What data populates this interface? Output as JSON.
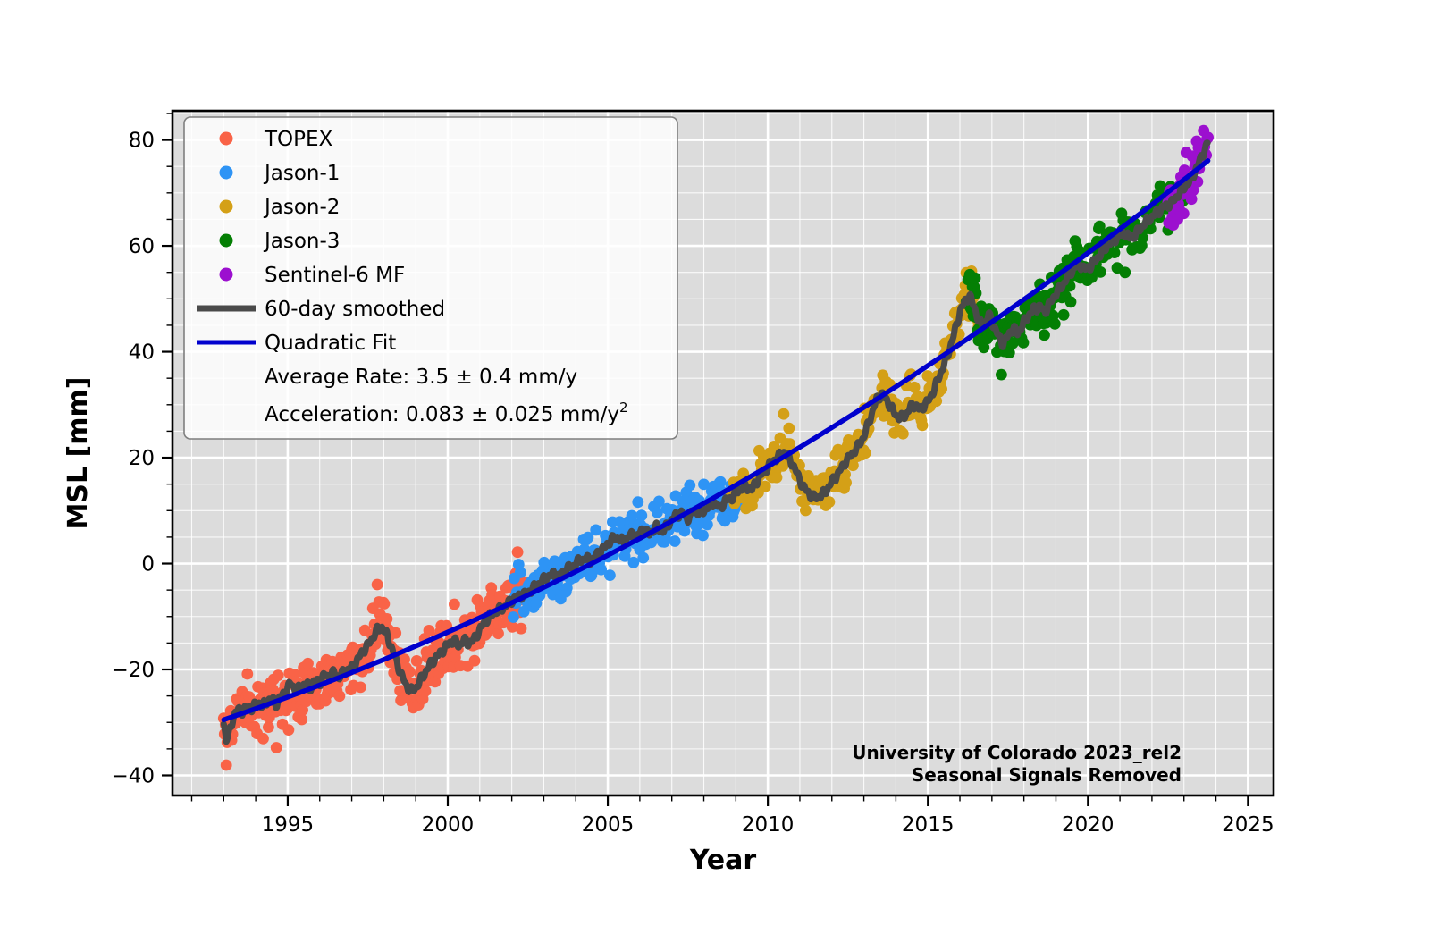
{
  "figure": {
    "annotation": {
      "line1": "University of Colorado 2023_rel2",
      "line2": "Seasonal Signals Removed"
    }
  },
  "legend": {
    "entries": [
      {
        "label": "TOPEX",
        "color": "#F96347",
        "marker": "dot"
      },
      {
        "label": "Jason-1",
        "color": "#2E94F5",
        "marker": "dot"
      },
      {
        "label": "Jason-2",
        "color": "#D4A017",
        "marker": "dot"
      },
      {
        "label": "Jason-3",
        "color": "#047F04",
        "marker": "dot"
      },
      {
        "label": "Sentinel-6 MF",
        "color": "#9C10CF",
        "marker": "dot"
      },
      {
        "label": "60-day smoothed",
        "color": "#4A4A4A",
        "marker": "line"
      },
      {
        "label": "Quadratic Fit",
        "color": "#0000CD",
        "marker": "line"
      }
    ],
    "stats": [
      {
        "text": "Average Rate: 3.5 ± 0.4 mm/y",
        "sup": ""
      },
      {
        "text": "Acceleration: 0.083 ± 0.025 mm/y",
        "sup": "2"
      }
    ]
  },
  "chart_data": {
    "type": "scatter",
    "title": "",
    "xlabel": "Year",
    "ylabel": "MSL [mm]",
    "xlim": [
      1991.4,
      2025.8
    ],
    "ylim": [
      -43.8,
      85.5
    ],
    "xticks": {
      "values": [
        1995,
        2000,
        2005,
        2010,
        2015,
        2020,
        2025
      ],
      "labels": [
        "1995",
        "2000",
        "2005",
        "2010",
        "2015",
        "2020",
        "2025"
      ]
    },
    "yticks": {
      "values": [
        -40,
        -20,
        0,
        20,
        40,
        60,
        80
      ],
      "labels": [
        "−40",
        "−20",
        "0",
        "20",
        "40",
        "60",
        "80"
      ]
    },
    "minor_x_step": 1,
    "minor_y_step": 5,
    "grid": {
      "background": "#DCDCDC",
      "major_color": "#FFFFFF",
      "minor_color": "#FFFFFF"
    },
    "average_rate_mm_per_yr": "3.5 ± 0.4",
    "acceleration_mm_per_yr2": "0.083 ± 0.025",
    "series": [
      {
        "name": "TOPEX",
        "color": "#F96347",
        "t_start": 1993.0,
        "t_end": 2002.4,
        "jitter_mm": 2.6,
        "seed": 11
      },
      {
        "name": "Jason-1",
        "color": "#2E94F5",
        "t_start": 2002.05,
        "t_end": 2009.15,
        "jitter_mm": 2.1,
        "seed": 23
      },
      {
        "name": "Jason-2",
        "color": "#D4A017",
        "t_start": 2008.85,
        "t_end": 2016.8,
        "jitter_mm": 2.2,
        "seed": 37
      },
      {
        "name": "Jason-3",
        "color": "#047F04",
        "t_start": 2016.2,
        "t_end": 2023.05,
        "jitter_mm": 2.1,
        "seed": 53
      },
      {
        "name": "Sentinel-6 MF",
        "color": "#9C10CF",
        "t_start": 2022.5,
        "t_end": 2023.75,
        "jitter_mm": 2.3,
        "seed": 71
      }
    ],
    "smoothed": {
      "name": "60-day smoothed",
      "color": "#4A4A4A",
      "points": [
        [
          1993.0,
          -30.0
        ],
        [
          1993.08,
          -33.5
        ],
        [
          1993.17,
          -32.0
        ],
        [
          1993.3,
          -29.0
        ],
        [
          1993.45,
          -27.5
        ],
        [
          1993.6,
          -28.0
        ],
        [
          1993.75,
          -27.0
        ],
        [
          1993.9,
          -27.5
        ],
        [
          1994.05,
          -26.0
        ],
        [
          1994.2,
          -27.0
        ],
        [
          1994.35,
          -26.0
        ],
        [
          1994.5,
          -25.5
        ],
        [
          1994.65,
          -26.5
        ],
        [
          1994.8,
          -25.0
        ],
        [
          1994.95,
          -24.0
        ],
        [
          1995.1,
          -22.5
        ],
        [
          1995.25,
          -24.0
        ],
        [
          1995.4,
          -23.5
        ],
        [
          1995.55,
          -22.5
        ],
        [
          1995.7,
          -23.5
        ],
        [
          1995.85,
          -22.0
        ],
        [
          1996.0,
          -22.5
        ],
        [
          1996.15,
          -21.0
        ],
        [
          1996.3,
          -21.5
        ],
        [
          1996.45,
          -20.5
        ],
        [
          1996.6,
          -21.5
        ],
        [
          1996.75,
          -20.5
        ],
        [
          1996.9,
          -20.0
        ],
        [
          1997.05,
          -19.5
        ],
        [
          1997.2,
          -18.0
        ],
        [
          1997.35,
          -16.5
        ],
        [
          1997.5,
          -15.5
        ],
        [
          1997.65,
          -14.0
        ],
        [
          1997.8,
          -12.5
        ],
        [
          1997.95,
          -12.0
        ],
        [
          1998.1,
          -13.5
        ],
        [
          1998.25,
          -16.0
        ],
        [
          1998.4,
          -18.5
        ],
        [
          1998.55,
          -21.0
        ],
        [
          1998.7,
          -23.0
        ],
        [
          1998.85,
          -24.0
        ],
        [
          1999.0,
          -23.5
        ],
        [
          1999.15,
          -22.0
        ],
        [
          1999.3,
          -20.5
        ],
        [
          1999.45,
          -19.0
        ],
        [
          1999.6,
          -18.0
        ],
        [
          1999.75,
          -17.0
        ],
        [
          1999.9,
          -16.0
        ],
        [
          2000.05,
          -15.0
        ],
        [
          2000.2,
          -14.5
        ],
        [
          2000.35,
          -15.5
        ],
        [
          2000.5,
          -14.5
        ],
        [
          2000.65,
          -15.0
        ],
        [
          2000.8,
          -14.5
        ],
        [
          2000.95,
          -13.0
        ],
        [
          2001.1,
          -11.5
        ],
        [
          2001.3,
          -10.0
        ],
        [
          2001.5,
          -9.0
        ],
        [
          2001.7,
          -8.5
        ],
        [
          2001.9,
          -7.5
        ],
        [
          2002.1,
          -6.5
        ],
        [
          2002.3,
          -6.0
        ],
        [
          2002.5,
          -5.5
        ],
        [
          2002.7,
          -4.5
        ],
        [
          2002.9,
          -3.5
        ],
        [
          2003.1,
          -2.5
        ],
        [
          2003.3,
          -2.0
        ],
        [
          2003.5,
          -2.5
        ],
        [
          2003.7,
          -1.0
        ],
        [
          2003.9,
          -0.5
        ],
        [
          2004.1,
          0.5
        ],
        [
          2004.3,
          1.0
        ],
        [
          2004.5,
          0.5
        ],
        [
          2004.7,
          2.0
        ],
        [
          2004.9,
          3.0
        ],
        [
          2005.1,
          4.5
        ],
        [
          2005.3,
          5.0
        ],
        [
          2005.5,
          4.0
        ],
        [
          2005.7,
          5.5
        ],
        [
          2005.9,
          5.0
        ],
        [
          2006.1,
          6.5
        ],
        [
          2006.3,
          5.5
        ],
        [
          2006.5,
          7.0
        ],
        [
          2006.7,
          6.0
        ],
        [
          2006.9,
          7.5
        ],
        [
          2007.1,
          9.0
        ],
        [
          2007.3,
          9.5
        ],
        [
          2007.5,
          8.5
        ],
        [
          2007.7,
          10.0
        ],
        [
          2007.9,
          9.5
        ],
        [
          2008.1,
          10.5
        ],
        [
          2008.3,
          11.5
        ],
        [
          2008.5,
          10.5
        ],
        [
          2008.7,
          12.0
        ],
        [
          2008.9,
          12.5
        ],
        [
          2009.1,
          14.0
        ],
        [
          2009.3,
          14.5
        ],
        [
          2009.5,
          14.0
        ],
        [
          2009.7,
          16.0
        ],
        [
          2009.9,
          17.5
        ],
        [
          2010.1,
          19.0
        ],
        [
          2010.3,
          20.0
        ],
        [
          2010.5,
          21.0
        ],
        [
          2010.65,
          20.0
        ],
        [
          2010.8,
          18.5
        ],
        [
          2010.95,
          16.5
        ],
        [
          2011.1,
          14.5
        ],
        [
          2011.25,
          13.5
        ],
        [
          2011.4,
          12.5
        ],
        [
          2011.55,
          12.5
        ],
        [
          2011.7,
          13.0
        ],
        [
          2011.85,
          14.0
        ],
        [
          2012.0,
          15.5
        ],
        [
          2012.2,
          17.0
        ],
        [
          2012.4,
          19.0
        ],
        [
          2012.6,
          20.5
        ],
        [
          2012.8,
          22.0
        ],
        [
          2013.0,
          24.0
        ],
        [
          2013.2,
          27.5
        ],
        [
          2013.4,
          31.0
        ],
        [
          2013.55,
          32.0
        ],
        [
          2013.7,
          31.0
        ],
        [
          2013.85,
          29.5
        ],
        [
          2014.0,
          28.0
        ],
        [
          2014.15,
          27.5
        ],
        [
          2014.3,
          28.0
        ],
        [
          2014.45,
          29.5
        ],
        [
          2014.6,
          30.0
        ],
        [
          2014.75,
          29.0
        ],
        [
          2014.9,
          30.0
        ],
        [
          2015.05,
          31.0
        ],
        [
          2015.2,
          33.0
        ],
        [
          2015.4,
          36.0
        ],
        [
          2015.6,
          39.0
        ],
        [
          2015.8,
          43.0
        ],
        [
          2016.0,
          47.5
        ],
        [
          2016.15,
          49.5
        ],
        [
          2016.3,
          50.5
        ],
        [
          2016.45,
          48.5
        ],
        [
          2016.6,
          45.5
        ],
        [
          2016.75,
          45.0
        ],
        [
          2016.9,
          47.0
        ],
        [
          2017.05,
          45.0
        ],
        [
          2017.2,
          43.0
        ],
        [
          2017.35,
          41.5
        ],
        [
          2017.5,
          43.0
        ],
        [
          2017.65,
          44.5
        ],
        [
          2017.8,
          43.5
        ],
        [
          2017.95,
          45.0
        ],
        [
          2018.1,
          46.5
        ],
        [
          2018.3,
          48.0
        ],
        [
          2018.5,
          48.5
        ],
        [
          2018.65,
          47.5
        ],
        [
          2018.8,
          49.0
        ],
        [
          2019.0,
          51.0
        ],
        [
          2019.2,
          52.5
        ],
        [
          2019.4,
          54.5
        ],
        [
          2019.6,
          56.0
        ],
        [
          2019.75,
          56.5
        ],
        [
          2019.9,
          55.5
        ],
        [
          2020.05,
          56.0
        ],
        [
          2020.2,
          57.0
        ],
        [
          2020.4,
          58.5
        ],
        [
          2020.6,
          60.0
        ],
        [
          2020.8,
          61.0
        ],
        [
          2021.0,
          62.0
        ],
        [
          2021.15,
          62.5
        ],
        [
          2021.3,
          61.5
        ],
        [
          2021.45,
          62.0
        ],
        [
          2021.6,
          63.0
        ],
        [
          2021.8,
          64.5
        ],
        [
          2022.0,
          65.5
        ],
        [
          2022.2,
          66.5
        ],
        [
          2022.4,
          67.5
        ],
        [
          2022.6,
          68.0
        ],
        [
          2022.8,
          69.5
        ],
        [
          2023.0,
          71.0
        ],
        [
          2023.15,
          72.0
        ],
        [
          2023.3,
          73.5
        ],
        [
          2023.45,
          75.5
        ],
        [
          2023.6,
          77.5
        ],
        [
          2023.75,
          79.5
        ]
      ]
    },
    "quadratic_fit": {
      "name": "Quadratic Fit",
      "color": "#0000CD",
      "t_range": [
        1993.0,
        2023.75
      ],
      "coeffs": {
        "t0": 1993,
        "c0": -29.5,
        "c1": 2.05,
        "c2": 0.045
      }
    }
  }
}
